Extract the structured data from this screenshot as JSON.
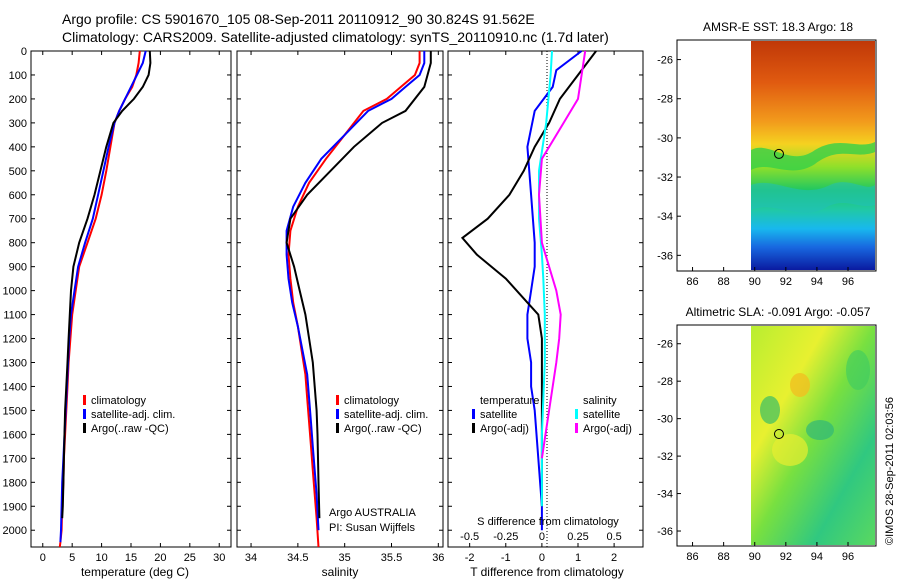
{
  "header": {
    "line1": "Argo profile: CS 5901670_105 08-Sep-2011 20110912_90 30.824S 91.562E",
    "line2": "Climatology: CARS2009. Satellite-adjusted climatology: synTS_20110910.nc (1.7d later)"
  },
  "footer_stamp": "©IMOS 28-Sep-2011 02:03:56",
  "colors": {
    "climatology": "#ff0000",
    "satellite": "#0000ff",
    "argo": "#000000",
    "sat_s": "#00ffff",
    "argo_s": "#ff00ff"
  },
  "chart_data": [
    {
      "id": "temperature",
      "type": "line",
      "xlabel": "temperature (deg C)",
      "ylabel": "",
      "xlim": [
        -2,
        32
      ],
      "ylim": [
        2070,
        0
      ],
      "xticks": [
        0,
        5,
        10,
        15,
        20,
        25,
        30
      ],
      "yticks": [
        0,
        100,
        200,
        300,
        400,
        500,
        600,
        700,
        800,
        900,
        1000,
        1100,
        1200,
        1300,
        1400,
        1500,
        1600,
        1700,
        1800,
        1900,
        2000
      ],
      "legend": [
        "climatology",
        "satellite-adj. clim.",
        "Argo(..raw -QC)"
      ],
      "series": [
        {
          "name": "climatology",
          "color": "#ff0000",
          "x": [
            16.5,
            16.3,
            15.9,
            15.2,
            14.0,
            13.0,
            12.2,
            11.5,
            10.8,
            10.0,
            9.0,
            7.6,
            6.2,
            5.6,
            5.0,
            4.7,
            4.4,
            4.2,
            4.0,
            3.8,
            3.6,
            3.5,
            3.3,
            3.2,
            3.0,
            2.9
          ],
          "y": [
            0,
            50,
            100,
            150,
            200,
            250,
            300,
            400,
            500,
            600,
            700,
            800,
            900,
            1000,
            1100,
            1200,
            1300,
            1400,
            1500,
            1600,
            1700,
            1800,
            1900,
            2000,
            2050,
            2070
          ]
        },
        {
          "name": "satellite-adj. clim.",
          "color": "#0000ff",
          "x": [
            17.5,
            17.0,
            16.0,
            15.0,
            14.0,
            13.0,
            12.2,
            11.2,
            10.3,
            9.4,
            8.5,
            7.2,
            6.0,
            5.4,
            4.8,
            4.5,
            4.3,
            4.1,
            3.9,
            3.7,
            3.5,
            3.3,
            3.2,
            3.1,
            3.0
          ],
          "y": [
            0,
            50,
            100,
            150,
            200,
            250,
            300,
            400,
            500,
            600,
            700,
            800,
            900,
            1000,
            1100,
            1200,
            1300,
            1400,
            1500,
            1600,
            1700,
            1800,
            1900,
            2000,
            2050
          ]
        },
        {
          "name": "Argo(..raw -QC)",
          "color": "#000000",
          "x": [
            18.2,
            18.3,
            18.0,
            17.0,
            15.5,
            13.5,
            12.0,
            10.8,
            9.8,
            8.8,
            7.6,
            6.2,
            5.2,
            4.8,
            4.6,
            4.4,
            4.2,
            4.0,
            3.8,
            3.7,
            3.6,
            3.5,
            3.4,
            3.3
          ],
          "y": [
            0,
            50,
            100,
            150,
            200,
            250,
            300,
            400,
            500,
            600,
            700,
            800,
            900,
            1000,
            1100,
            1200,
            1300,
            1400,
            1500,
            1600,
            1700,
            1800,
            1900,
            1950
          ]
        }
      ]
    },
    {
      "id": "salinity",
      "type": "line",
      "xlabel": "salinity",
      "ylabel": "",
      "xlim": [
        33.85,
        36.05
      ],
      "ylim": [
        2070,
        0
      ],
      "xticks": [
        34,
        34.5,
        35,
        35.5,
        36
      ],
      "xticklabels": [
        "34",
        "34.5",
        "35",
        "35.5",
        "36"
      ],
      "legend": [
        "climatology",
        "satellite-adj. clim.",
        "Argo(..raw -QC)"
      ],
      "annotation": [
        "Argo AUSTRALIA",
        "PI: Susan Wijffels"
      ],
      "series": [
        {
          "name": "climatology",
          "color": "#ff0000",
          "x": [
            35.8,
            35.8,
            35.75,
            35.6,
            35.45,
            35.2,
            35.0,
            34.8,
            34.62,
            34.5,
            34.42,
            34.4,
            34.42,
            34.45,
            34.5,
            34.54,
            34.58,
            34.6,
            34.62,
            34.64,
            34.66,
            34.68,
            34.7,
            34.72
          ],
          "y": [
            0,
            50,
            100,
            150,
            200,
            250,
            350,
            450,
            550,
            650,
            750,
            850,
            950,
            1050,
            1150,
            1250,
            1350,
            1450,
            1550,
            1650,
            1750,
            1850,
            1950,
            2070
          ]
        },
        {
          "name": "satellite-adj. clim.",
          "color": "#0000ff",
          "x": [
            35.85,
            35.85,
            35.8,
            35.65,
            35.5,
            35.25,
            35.0,
            34.75,
            34.58,
            34.45,
            34.38,
            34.38,
            34.4,
            34.44,
            34.5,
            34.55,
            34.6,
            34.62,
            34.64,
            34.66,
            34.68,
            34.7,
            34.72
          ],
          "y": [
            0,
            50,
            100,
            150,
            200,
            250,
            350,
            450,
            550,
            650,
            750,
            850,
            950,
            1050,
            1150,
            1250,
            1350,
            1450,
            1550,
            1650,
            1750,
            1850,
            2000
          ]
        },
        {
          "name": "Argo(..raw -QC)",
          "color": "#000000",
          "x": [
            35.92,
            35.92,
            35.85,
            35.65,
            35.4,
            35.1,
            34.85,
            34.6,
            34.42,
            34.38,
            34.46,
            34.52,
            34.58,
            34.62,
            34.66,
            34.68,
            34.7,
            34.71,
            34.72,
            34.73
          ],
          "y": [
            0,
            50,
            150,
            250,
            300,
            400,
            500,
            600,
            700,
            800,
            900,
            1000,
            1100,
            1200,
            1300,
            1400,
            1500,
            1600,
            1800,
            1950
          ]
        }
      ]
    },
    {
      "id": "difference",
      "type": "line",
      "xlabel": "T difference from climatology",
      "toplabel": "S difference from climatology",
      "xlim": [
        -2.6,
        2.8
      ],
      "ylim": [
        2070,
        0
      ],
      "xticks": [
        -2,
        -1,
        0,
        1,
        2
      ],
      "s_ticklabels": [
        "-0.5",
        "-0.25",
        "0",
        "0.25",
        "0.5"
      ],
      "legend_titles": [
        "temperature",
        "salinity"
      ],
      "legend": [
        "satellite",
        "Argo(-adj)",
        "satellite",
        "Argo(-adj)"
      ],
      "series": [
        {
          "name": "T satellite",
          "color": "#0000ff",
          "x": [
            1.1,
            0.4,
            0.3,
            -0.2,
            -0.4,
            -0.3,
            -0.2,
            -0.2,
            -0.3,
            -0.4,
            -0.4,
            -0.3,
            -0.3,
            -0.2,
            -0.1,
            0,
            0
          ],
          "y": [
            0,
            80,
            150,
            250,
            400,
            600,
            800,
            900,
            1000,
            1100,
            1200,
            1300,
            1400,
            1500,
            1700,
            1900,
            2000
          ]
        },
        {
          "name": "T Argo(-adj)",
          "color": "#000000",
          "x": [
            1.5,
            1.0,
            0.5,
            0.2,
            -0.2,
            -0.5,
            -0.9,
            -1.5,
            -2.2,
            -1.8,
            -1.0,
            -0.4,
            -0.1,
            0,
            0
          ],
          "y": [
            0,
            100,
            200,
            300,
            400,
            500,
            600,
            700,
            780,
            850,
            950,
            1050,
            1100,
            1200,
            1900
          ]
        },
        {
          "name": "S satellite",
          "color": "#00ffff",
          "x": [
            0.07,
            0.06,
            0.03,
            -0.02,
            -0.02,
            0.0,
            0.01,
            0.02,
            0.02,
            0.0,
            0.0
          ],
          "y": [
            0,
            100,
            300,
            500,
            700,
            850,
            950,
            1100,
            1300,
            1600,
            1900
          ]
        },
        {
          "name": "S Argo(-adj)",
          "color": "#ff00ff",
          "x": [
            0.3,
            0.25,
            0.15,
            0.0,
            -0.02,
            0.0,
            0.05,
            0.1,
            0.13,
            0.12,
            0.1,
            0.05,
            0.0
          ],
          "y": [
            0,
            200,
            300,
            450,
            600,
            800,
            900,
            1000,
            1100,
            1200,
            1300,
            1500,
            1700
          ]
        }
      ]
    },
    {
      "id": "sst_map",
      "type": "heatmap",
      "title": "AMSR-E SST: 18.3 Argo: 18",
      "xticks": [
        86,
        88,
        90,
        92,
        94,
        96
      ],
      "yticks": [
        -26,
        -28,
        -30,
        -32,
        -34,
        -36
      ],
      "xlim": [
        85,
        97.8
      ],
      "ylim": [
        -36.8,
        -25
      ],
      "argo_position": [
        91.56,
        -30.82
      ]
    },
    {
      "id": "sla_map",
      "type": "heatmap",
      "title": "Altimetric SLA: -0.091 Argo: -0.057",
      "xticks": [
        86,
        88,
        90,
        92,
        94,
        96
      ],
      "yticks": [
        -26,
        -28,
        -30,
        -32,
        -34,
        -36
      ],
      "xlim": [
        85,
        97.8
      ],
      "ylim": [
        -36.8,
        -25
      ],
      "argo_position": [
        91.56,
        -30.82
      ]
    }
  ]
}
